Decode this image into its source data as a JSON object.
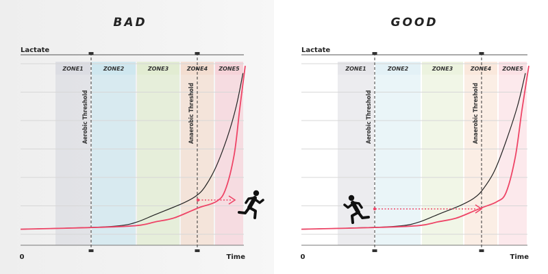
{
  "chart_data": [
    {
      "type": "line",
      "title": "BAD",
      "ylabel": "Lactate",
      "xlabel": "Time",
      "x_origin_label": "0",
      "zones": [
        "ZONE1",
        "ZONE2",
        "ZONE3",
        "ZONE4",
        "ZONE5"
      ],
      "zone_colors": [
        "#dcdde3",
        "#cfe7ef",
        "#e2ecd2",
        "#f3ddd0",
        "#f6d3d9"
      ],
      "thresholds": [
        "Aerobic Threshold",
        "Anaerobic Threshold"
      ],
      "series": [
        {
          "color": "#222222",
          "values": [
            [
              0.0,
              0.05
            ],
            [
              0.32,
              0.06
            ],
            [
              0.45,
              0.07
            ],
            [
              0.52,
              0.09
            ],
            [
              0.6,
              0.13
            ],
            [
              0.72,
              0.19
            ],
            [
              0.78,
              0.23
            ],
            [
              0.82,
              0.28
            ],
            [
              0.87,
              0.39
            ],
            [
              0.92,
              0.55
            ],
            [
              0.96,
              0.72
            ],
            [
              0.99,
              0.9
            ]
          ]
        },
        {
          "color": "#ee4466",
          "values": [
            [
              0.0,
              0.05
            ],
            [
              0.35,
              0.06
            ],
            [
              0.52,
              0.07
            ],
            [
              0.6,
              0.09
            ],
            [
              0.68,
              0.11
            ],
            [
              0.76,
              0.15
            ],
            [
              0.8,
              0.17
            ],
            [
              0.87,
              0.2
            ],
            [
              0.91,
              0.26
            ],
            [
              0.95,
              0.45
            ],
            [
              0.975,
              0.7
            ],
            [
              1.0,
              0.94
            ]
          ]
        }
      ],
      "runner_color": "#111111",
      "arrow_color": "#ee4466"
    },
    {
      "type": "line",
      "title": "GOOD",
      "ylabel": "Lactate",
      "xlabel": "Time",
      "x_origin_label": "0",
      "zones": [
        "ZONE1",
        "ZONE2",
        "ZONE3",
        "ZONE4",
        "ZONE5"
      ],
      "zone_colors": [
        "#e6e6ea",
        "#e3f1f6",
        "#ecf3df",
        "#fae8dc",
        "#fbe1e5"
      ],
      "thresholds": [
        "Aerobic Threshold",
        "Anaerobic Threshold"
      ],
      "series": [
        {
          "color": "#222222",
          "values": [
            [
              0.0,
              0.05
            ],
            [
              0.32,
              0.06
            ],
            [
              0.45,
              0.07
            ],
            [
              0.52,
              0.09
            ],
            [
              0.6,
              0.13
            ],
            [
              0.7,
              0.18
            ],
            [
              0.76,
              0.22
            ],
            [
              0.8,
              0.27
            ],
            [
              0.85,
              0.37
            ],
            [
              0.9,
              0.53
            ],
            [
              0.95,
              0.72
            ],
            [
              0.985,
              0.9
            ]
          ]
        },
        {
          "color": "#ee4466",
          "values": [
            [
              0.0,
              0.05
            ],
            [
              0.35,
              0.06
            ],
            [
              0.52,
              0.07
            ],
            [
              0.6,
              0.09
            ],
            [
              0.68,
              0.11
            ],
            [
              0.76,
              0.15
            ],
            [
              0.8,
              0.17
            ],
            [
              0.86,
              0.2
            ],
            [
              0.9,
              0.25
            ],
            [
              0.94,
              0.44
            ],
            [
              0.97,
              0.7
            ],
            [
              1.0,
              0.94
            ]
          ]
        }
      ],
      "runner_color": "#111111",
      "arrow_color": "#ee4466"
    }
  ]
}
